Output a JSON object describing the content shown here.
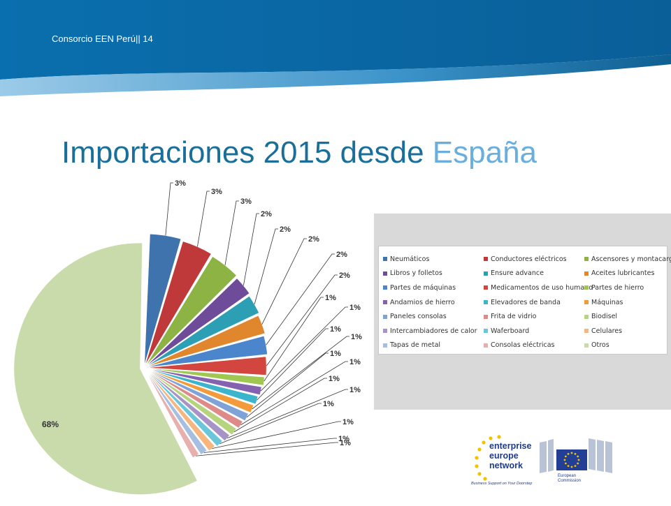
{
  "header": {
    "text": "Consorcio EEN Perú|| 14"
  },
  "slide": {
    "title_main": "Importaciones 2015 desde ",
    "title_accent": "España"
  },
  "chart_data": {
    "type": "pie",
    "title": "",
    "legend_position": "right",
    "series": [
      {
        "name": "Neumáticos",
        "value": 3,
        "label": "3%",
        "color": "#3e73ad"
      },
      {
        "name": "Conductores eléctricos",
        "value": 3,
        "label": "3%",
        "color": "#c0393a"
      },
      {
        "name": "Ascensores y montacargas",
        "value": 3,
        "label": "3%",
        "color": "#8db345"
      },
      {
        "name": "Libros y folletos",
        "value": 2,
        "label": "2%",
        "color": "#6f4c9a"
      },
      {
        "name": "Ensure advance",
        "value": 2,
        "label": "2%",
        "color": "#2d9fb5"
      },
      {
        "name": "Aceites lubricantes",
        "value": 2,
        "label": "2%",
        "color": "#e0862c"
      },
      {
        "name": "Partes de máquinas",
        "value": 2,
        "label": "2%",
        "color": "#4b86cc"
      },
      {
        "name": "Medicamentos de uso humano",
        "value": 2,
        "label": "2%",
        "color": "#d2463f"
      },
      {
        "name": "Partes de hierro",
        "value": 1,
        "label": "1%",
        "color": "#9fc751"
      },
      {
        "name": "Andamios de hierro",
        "value": 1,
        "label": "1%",
        "color": "#8462b0"
      },
      {
        "name": "Elevadores de banda",
        "value": 1,
        "label": "1%",
        "color": "#3bb4cc"
      },
      {
        "name": "Máquinas",
        "value": 1,
        "label": "1%",
        "color": "#f39a3a"
      },
      {
        "name": "Paneles consolas",
        "value": 1,
        "label": "1%",
        "color": "#7fa3d6"
      },
      {
        "name": "Frita de vidrio",
        "value": 1,
        "label": "1%",
        "color": "#dd8a88"
      },
      {
        "name": "Biodisel",
        "value": 1,
        "label": "1%",
        "color": "#b6d37d"
      },
      {
        "name": "Intercambiadores de calor",
        "value": 1,
        "label": "1%",
        "color": "#a793c6"
      },
      {
        "name": "Waferboard",
        "value": 1,
        "label": "1%",
        "color": "#6ac6db"
      },
      {
        "name": "Celulares",
        "value": 1,
        "label": "1%",
        "color": "#f6b67e"
      },
      {
        "name": "Tapas de metal",
        "value": 1,
        "label": "1%",
        "color": "#a6bfe0"
      },
      {
        "name": "Consolas eléctricas",
        "value": 1,
        "label": "1%",
        "color": "#e7b0ae"
      },
      {
        "name": "Otros",
        "value": 68,
        "label": "68%",
        "color": "#c9dbab"
      }
    ]
  },
  "logos": {
    "een_line1": "enterprise",
    "een_line2": "europe",
    "een_line3": "network",
    "een_tagline": "Business Support on Your Doorstep",
    "ec_line1": "European",
    "ec_line2": "Commission"
  }
}
